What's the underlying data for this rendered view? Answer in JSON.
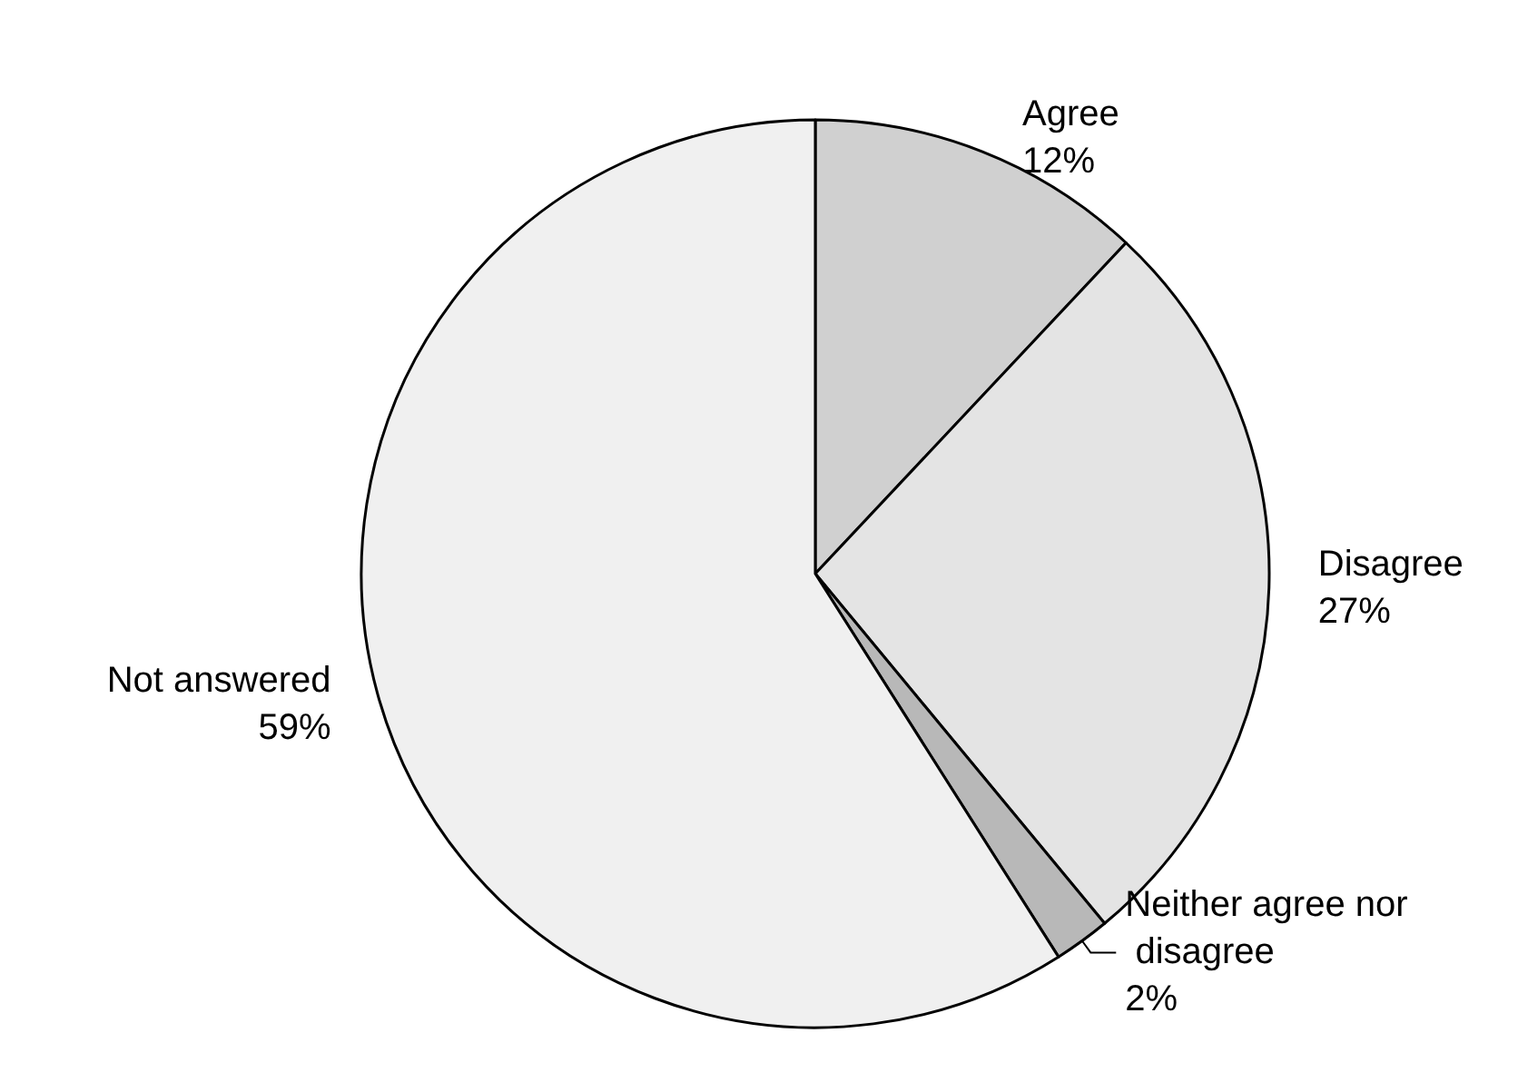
{
  "chart_data": {
    "type": "pie",
    "categories": [
      "Agree",
      "Disagree",
      "Neither agree nor disagree",
      "Not answered"
    ],
    "values": [
      12,
      27,
      2,
      59
    ],
    "colors": [
      "#d0d0d0",
      "#e4e4e4",
      "#b8b8b8",
      "#f0f0f0"
    ],
    "value_labels": [
      "12%",
      "27%",
      "2%",
      "59%"
    ],
    "legend": false
  }
}
